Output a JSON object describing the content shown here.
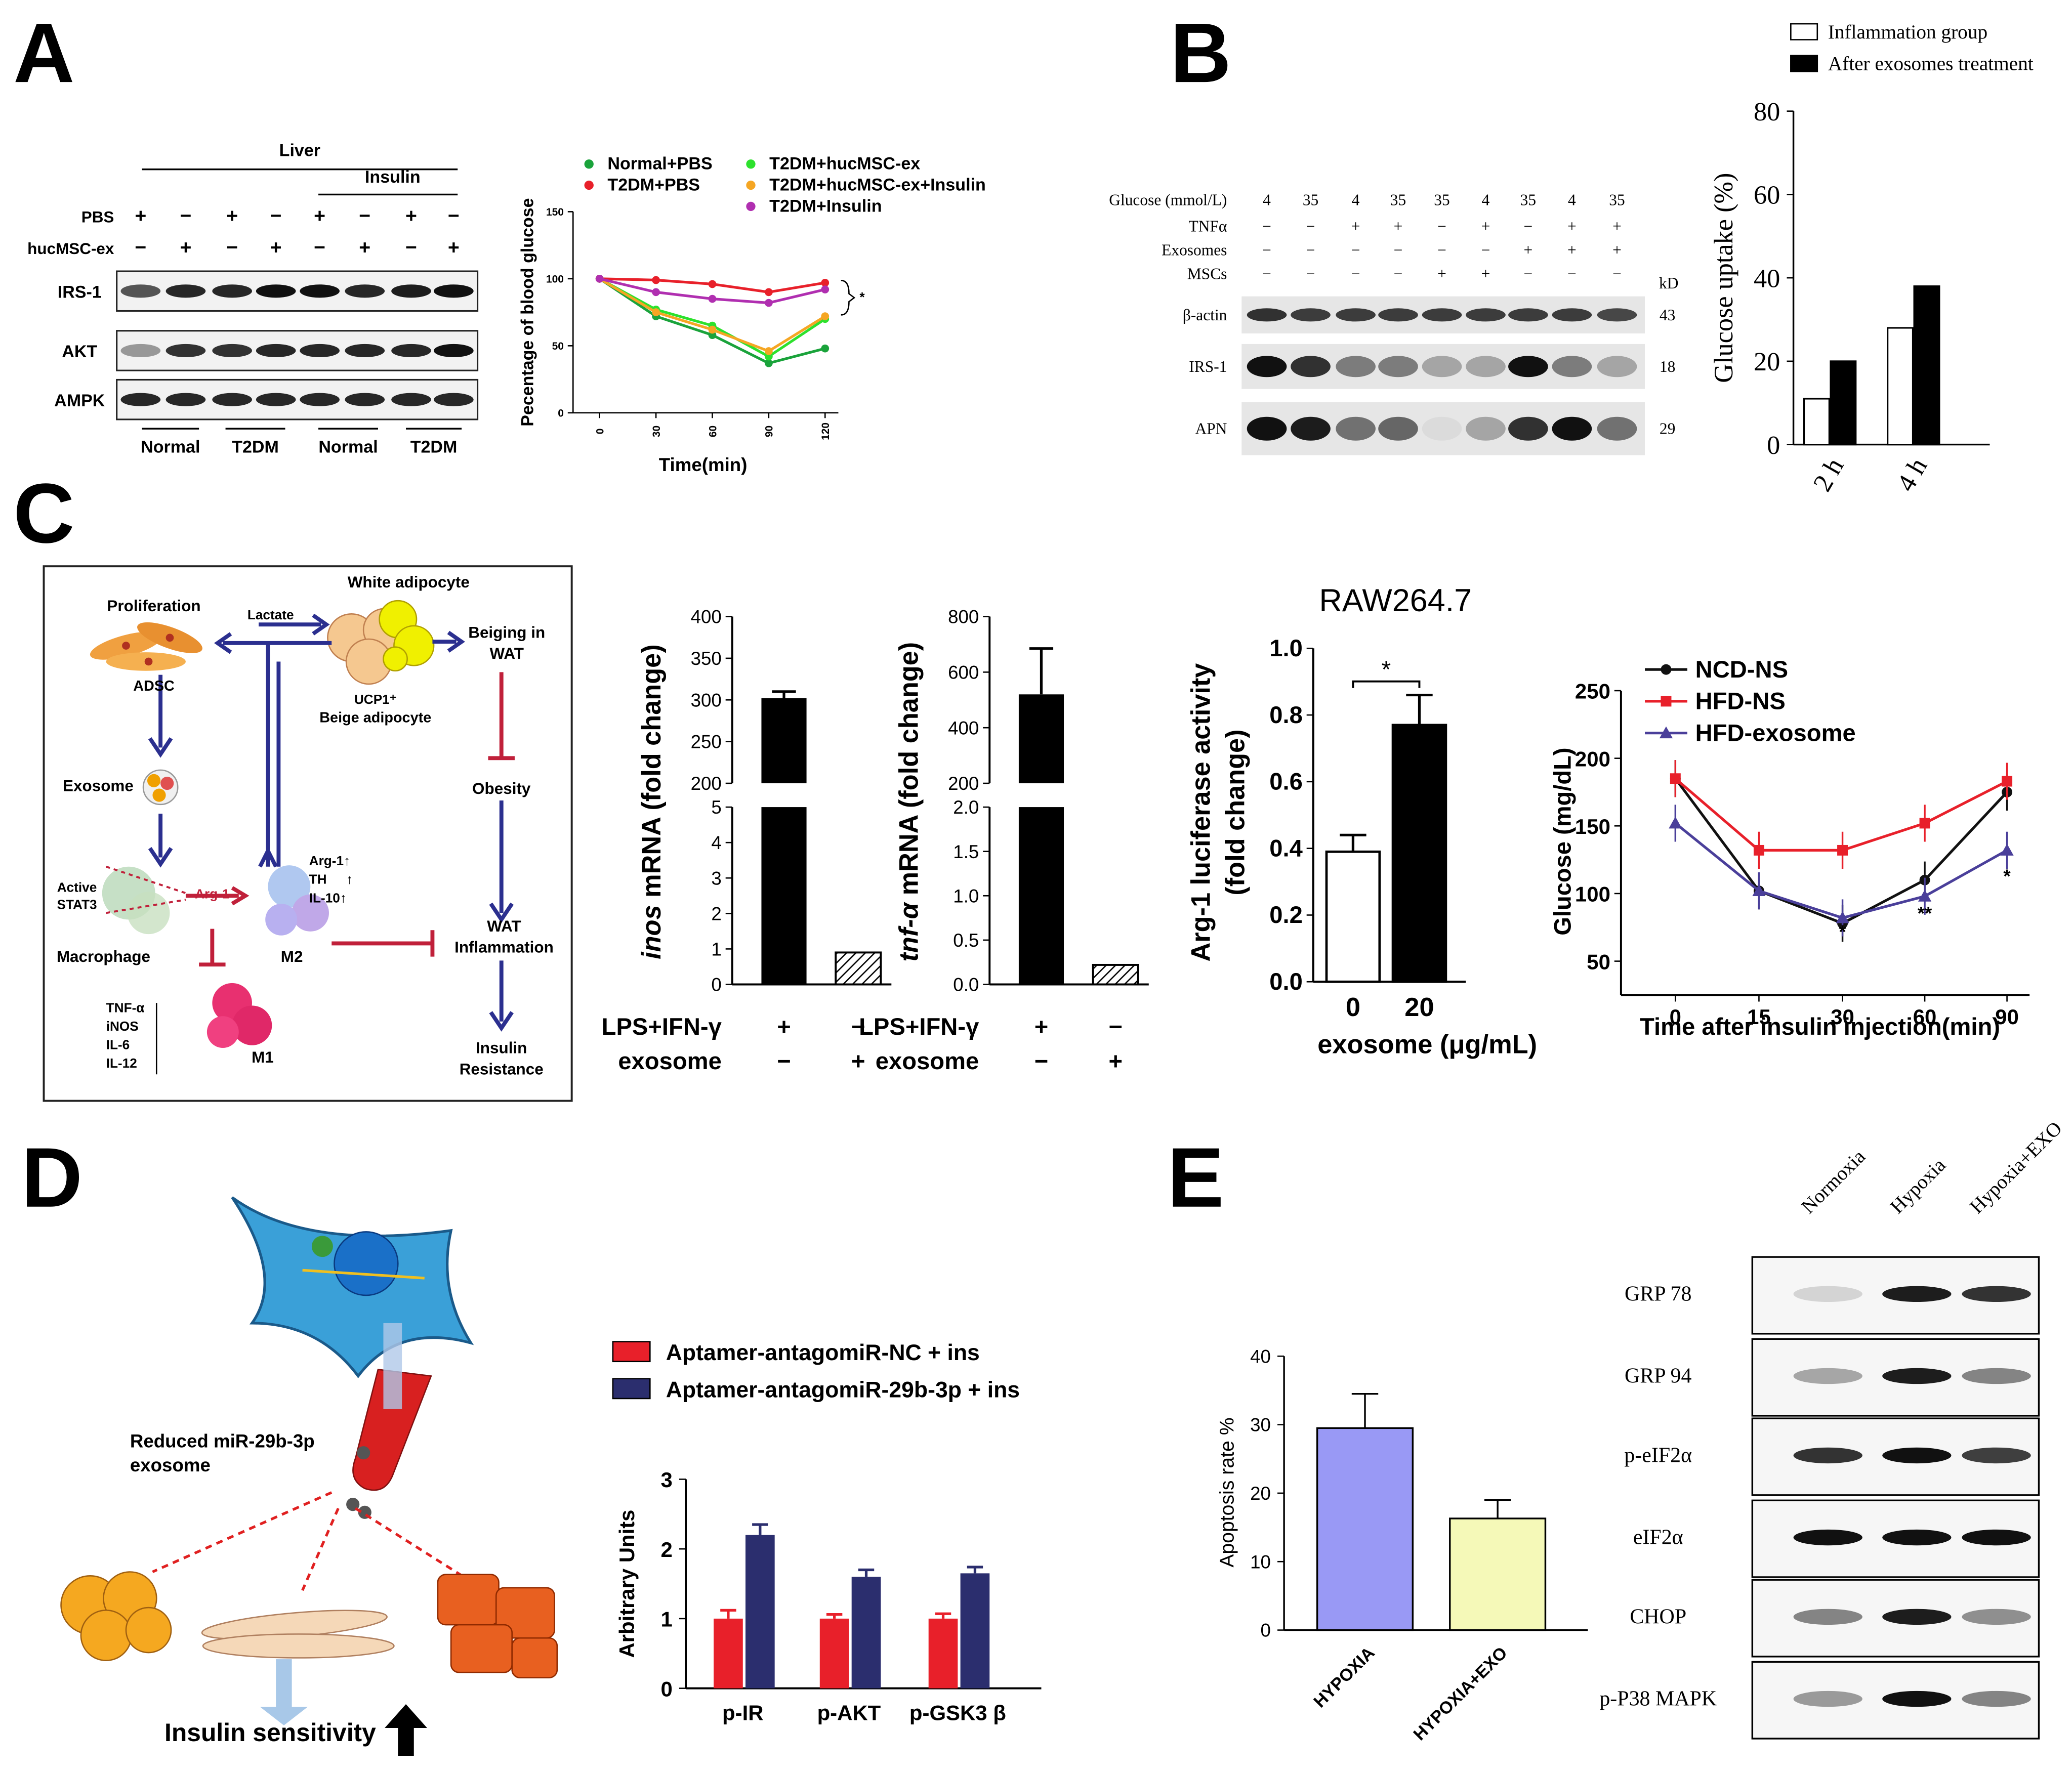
{
  "panel_labels": {
    "a": "A",
    "b": "B",
    "c": "C",
    "d": "D",
    "e": "E"
  },
  "panelA": {
    "blot": {
      "header": "Liver",
      "insulin": "Insulin",
      "row_labels": [
        "PBS",
        "hucMSC-ex"
      ],
      "pbs": [
        "+",
        "−",
        "+",
        "−",
        "+",
        "−",
        "+",
        "−"
      ],
      "ex": [
        "−",
        "+",
        "−",
        "+",
        "−",
        "+",
        "−",
        "+"
      ],
      "bands": [
        "IRS-1",
        "AKT",
        "AMPK"
      ],
      "groups": [
        "Normal",
        "T2DM",
        "Normal",
        "T2DM"
      ]
    },
    "chart_data": {
      "type": "line",
      "x": [
        0,
        30,
        60,
        90,
        120
      ],
      "xlabel": "Time(min)",
      "ylabel": "Pecentage of blood glucose",
      "xticks": [
        "0",
        "30",
        "60",
        "90",
        "120"
      ],
      "yticks": [
        "0",
        "50",
        "100",
        "150"
      ],
      "ylim": [
        0,
        150
      ],
      "significance": "*",
      "series": [
        {
          "name": "Normal+PBS",
          "color": "#1aa33b",
          "values": [
            100,
            72,
            58,
            37,
            48
          ]
        },
        {
          "name": "T2DM+PBS",
          "color": "#e8202a",
          "values": [
            100,
            99,
            96,
            90,
            97
          ]
        },
        {
          "name": "T2DM+hucMSC-ex",
          "color": "#2de12d",
          "values": [
            100,
            77,
            65,
            42,
            70
          ]
        },
        {
          "name": "T2DM+hucMSC-ex+Insulin",
          "color": "#f5a623",
          "values": [
            100,
            75,
            62,
            46,
            72
          ]
        },
        {
          "name": "T2DM+Insulin",
          "color": "#b02fb0",
          "values": [
            100,
            90,
            85,
            82,
            92
          ]
        }
      ]
    }
  },
  "panelB": {
    "blot": {
      "rows": [
        {
          "label": "Glucose (mmol/L)",
          "vals": [
            "4",
            "35",
            "4",
            "35",
            "35",
            "4",
            "35",
            "4",
            "35"
          ]
        },
        {
          "label": "TNFα",
          "vals": [
            "−",
            "−",
            "+",
            "+",
            "−",
            "+",
            "−",
            "+",
            "+"
          ]
        },
        {
          "label": "Exosomes",
          "vals": [
            "−",
            "−",
            "−",
            "−",
            "−",
            "−",
            "+",
            "+",
            "+"
          ]
        },
        {
          "label": "MSCs",
          "vals": [
            "−",
            "−",
            "−",
            "−",
            "+",
            "+",
            "−",
            "−",
            "−"
          ]
        }
      ],
      "kd": "kD",
      "bands": [
        {
          "label": "β-actin",
          "kd": "43"
        },
        {
          "label": "IRS-1",
          "kd": "18"
        },
        {
          "label": "APN",
          "kd": "29"
        }
      ]
    },
    "chart_data": {
      "type": "bar",
      "categories": [
        "2 h",
        "4 h"
      ],
      "ylabel": "Glucose uptake (%)",
      "yticks": [
        "0",
        "20",
        "40",
        "60",
        "80"
      ],
      "ylim": [
        0,
        80
      ],
      "series": [
        {
          "name": "Inflammation group",
          "values": [
            11,
            28
          ],
          "color": "#ffffff"
        },
        {
          "name": "After exosomes treatment",
          "values": [
            20,
            38
          ],
          "color": "#000000"
        }
      ]
    }
  },
  "panelC": {
    "diagram": {
      "white_adipocyte": "White adipocyte",
      "proliferation": "Proliferation",
      "lactate": "Lactate",
      "beiging": [
        "Beiging in",
        "WAT"
      ],
      "adsc": "ADSC",
      "ucp1": "UCP1⁺",
      "beige": "Beige adipocyte",
      "exosome": "Exosome",
      "obesity": "Obesity",
      "active": "Active",
      "stat3": "STAT3",
      "arg1": "Arg-1",
      "m2_markers": [
        "Arg-1↑",
        "TH",
        "IL-10↑"
      ],
      "th_arrow": "↑",
      "macrophage": "Macrophage",
      "m2": "M2",
      "wat": [
        "WAT",
        "Inflammation"
      ],
      "m1_markers": [
        "TNF-α",
        "iNOS",
        "IL-6",
        "IL-12"
      ],
      "m1": "M1",
      "insulin": [
        "Insulin",
        "Resistance"
      ]
    },
    "chart_data": [
      {
        "type": "bar",
        "ylabel_italic": "inos",
        "ylabel": " mRNA (fold change)",
        "values": [
          302,
          0.9
        ],
        "yticks_top": [
          "200",
          "250",
          "300",
          "350",
          "400"
        ],
        "yticks_bot": [
          "0",
          "1",
          "2",
          "3",
          "4",
          "5"
        ],
        "row1": {
          "label": "LPS+IFN-γ",
          "vals": [
            "+",
            "−"
          ]
        },
        "row2": {
          "label": "exosome",
          "vals": [
            "−",
            "+"
          ]
        }
      },
      {
        "type": "bar",
        "ylabel_italic": "tnf-α",
        "ylabel": " mRNA (fold change)",
        "values": [
          520,
          0.22
        ],
        "yticks_top": [
          "200",
          "400",
          "600",
          "800"
        ],
        "yticks_bot": [
          "0.0",
          "0.5",
          "1.0",
          "1.5",
          "2.0"
        ],
        "row1": {
          "label": "LPS+IFN-γ",
          "vals": [
            "+",
            "−"
          ]
        },
        "row2": {
          "label": "exosome",
          "vals": [
            "−",
            "+"
          ]
        }
      },
      {
        "type": "bar",
        "title": "RAW264.7",
        "ylabel": [
          "Arg-1 luciferase activity",
          "(fold change)"
        ],
        "categories": [
          "0",
          "20"
        ],
        "values": [
          0.39,
          0.77
        ],
        "xlabel": "exosome (μg/mL)",
        "yticks": [
          "0.0",
          "0.2",
          "0.4",
          "0.6",
          "0.8",
          "1.0"
        ],
        "ylim": [
          0,
          1.0
        ],
        "significance": "*"
      },
      {
        "type": "line",
        "x": [
          0,
          15,
          30,
          60,
          90
        ],
        "xlabel": "Time after insulin injection(min)",
        "ylabel": "Glucose (mg/dL)",
        "xticks": [
          "0",
          "15",
          "30",
          "60",
          "90"
        ],
        "yticks": [
          "50",
          "100",
          "150",
          "200",
          "250"
        ],
        "ylim": [
          25,
          250
        ],
        "annotations": [
          "*",
          "**",
          "*"
        ],
        "series": [
          {
            "name": "NCD-NS",
            "color": "#111111",
            "values": [
              185,
              102,
              78,
              110,
              175
            ]
          },
          {
            "name": "HFD-NS",
            "color": "#e8202a",
            "values": [
              185,
              132,
              132,
              152,
              183
            ]
          },
          {
            "name": "HFD-exosome",
            "color": "#4a3f9a",
            "values": [
              152,
              102,
              82,
              98,
              132
            ]
          }
        ]
      }
    ]
  },
  "panelD": {
    "reduced": [
      "Reduced miR-29b-3p",
      "exosome"
    ],
    "insulin_sens": "Insulin sensitivity",
    "chart_data": {
      "type": "bar",
      "categories": [
        "p-IR",
        "p-AKT",
        "p-GSK3 β"
      ],
      "ylabel": "Arbitrary Units",
      "yticks": [
        "0",
        "1",
        "2",
        "3"
      ],
      "ylim": [
        0,
        3
      ],
      "series": [
        {
          "name": "Aptamer-antagomiR-NC + ins",
          "color": "#e8202a",
          "values": [
            1.0,
            1.0,
            1.0
          ]
        },
        {
          "name": "Aptamer-antagomiR-29b-3p + ins",
          "color": "#2b2e6e",
          "values": [
            2.2,
            1.6,
            1.65
          ]
        }
      ]
    }
  },
  "panelE": {
    "chart_data": {
      "type": "bar",
      "categories": [
        "HYPOXIA",
        "HYPOXIA+EXO"
      ],
      "ylabel": "Apoptosis rate %",
      "yticks": [
        "0",
        "10",
        "20",
        "30",
        "40"
      ],
      "ylim": [
        0,
        40
      ],
      "values": [
        29.5,
        16.3
      ],
      "colors": [
        "#9999f5",
        "#f5f9b8"
      ]
    },
    "blot": {
      "columns": [
        "Normoxia",
        "Hypoxia",
        "Hypoxia+EXO"
      ],
      "bands": [
        "GRP 78",
        "GRP 94",
        "p-eIF2α",
        "eIF2α",
        "CHOP",
        "p-P38 MAPK"
      ]
    }
  }
}
